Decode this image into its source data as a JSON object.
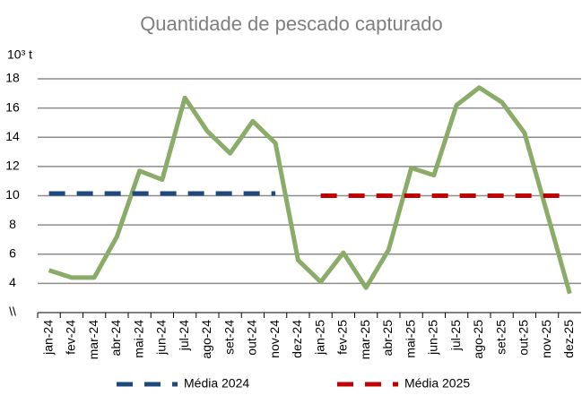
{
  "chart_data": {
    "type": "line",
    "title": "Quantidade de pescado capturado",
    "y_label": "10³ t",
    "categories": [
      "jan-24",
      "fev-24",
      "mar-24",
      "abr-24",
      "mai-24",
      "jun-24",
      "jul-24",
      "ago-24",
      "set-24",
      "out-24",
      "nov-24",
      "dez-24",
      "jan-25",
      "fev-25",
      "mar-25",
      "abr-25",
      "mai-25",
      "jun-25",
      "jul-25",
      "ago-25",
      "set-25",
      "out-25",
      "nov-25",
      "dez-25"
    ],
    "series": [
      {
        "name": null,
        "color": "#8aac68",
        "dash": false,
        "values": [
          4.9,
          4.4,
          4.4,
          7.2,
          11.7,
          11.1,
          16.7,
          14.4,
          12.9,
          15.1,
          13.6,
          5.6,
          4.1,
          6.1,
          3.7,
          6.3,
          11.9,
          11.4,
          16.2,
          17.4,
          16.4,
          14.3,
          8.8,
          3.3
        ]
      },
      {
        "name": "Média 2024",
        "color": "#1f497d",
        "dash": true,
        "values": [
          10.15,
          10.15,
          10.15,
          10.15,
          10.15,
          10.15,
          10.15,
          10.15,
          10.15,
          10.15,
          10.15,
          null,
          null,
          null,
          null,
          null,
          null,
          null,
          null,
          null,
          null,
          null,
          null,
          null
        ]
      },
      {
        "name": "Média 2025",
        "color": "#c00000",
        "dash": true,
        "values": [
          null,
          null,
          null,
          null,
          null,
          null,
          null,
          null,
          null,
          null,
          null,
          null,
          10.0,
          10.0,
          10.0,
          10.0,
          10.0,
          10.0,
          10.0,
          10.0,
          10.0,
          10.0,
          10.0,
          10.0
        ]
      }
    ],
    "ylim": [
      2,
      18
    ],
    "yticks": [
      {
        "value": 2,
        "label": "\\\\"
      },
      4,
      6,
      8,
      10,
      12,
      14,
      16,
      18
    ],
    "grid": true
  }
}
